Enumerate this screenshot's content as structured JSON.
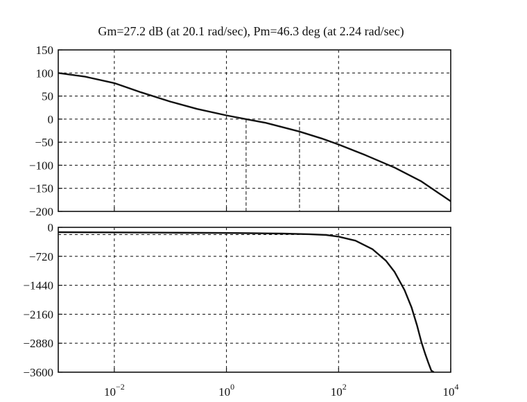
{
  "chart_data": [
    {
      "type": "line",
      "title": "Gm=27.2 dB (at 20.1 rad/sec), Pm=46.3 deg (at 2.24 rad/sec)",
      "xscale": "log",
      "xlim": [
        0.001,
        10000
      ],
      "ylim": [
        -200,
        150
      ],
      "y_ticks": [
        150,
        100,
        50,
        0,
        -50,
        -100,
        -150,
        -200
      ],
      "y_tick_labels": [
        "150",
        "100",
        "50",
        "0",
        "−50",
        "−100",
        "−150",
        "−200"
      ],
      "grid": true,
      "series": [
        {
          "x": [
            0.001,
            0.003,
            0.01,
            0.03,
            0.1,
            0.3,
            1,
            2.24,
            5,
            20.1,
            50,
            100,
            300,
            1000,
            3000,
            10000
          ],
          "values": [
            100,
            92,
            78,
            58,
            38,
            22,
            8,
            0,
            -8,
            -27,
            -42,
            -55,
            -78,
            -105,
            -135,
            -178
          ]
        }
      ],
      "markers": [
        {
          "x": 2.24,
          "from": -200,
          "to": 0
        },
        {
          "x": 20.1,
          "from": -200,
          "to": -5
        }
      ]
    },
    {
      "type": "line",
      "xscale": "log",
      "xlim": [
        0.001,
        10000
      ],
      "ylim": [
        -3600,
        0
      ],
      "y_ticks": [
        0,
        -720,
        -1440,
        -2160,
        -2880,
        -3600
      ],
      "y_tick_labels": [
        "0",
        "−720",
        "−1440",
        "−2160",
        "−2880",
        "−3600"
      ],
      "x_ticks": [
        0.01,
        1,
        100,
        10000
      ],
      "x_tick_labels": [
        {
          "base": "10",
          "exp": "−2"
        },
        {
          "base": "10",
          "exp": "0"
        },
        {
          "base": "10",
          "exp": "2"
        },
        {
          "base": "10",
          "exp": "4"
        }
      ],
      "grid": true,
      "series": [
        {
          "x": [
            0.001,
            0.01,
            0.1,
            1,
            3,
            10,
            30,
            60,
            100,
            200,
            400,
            700,
            1000,
            1500,
            2000,
            2500,
            3000,
            3500,
            4000,
            4500,
            5000
          ],
          "values": [
            -120,
            -125,
            -132,
            -140,
            -146,
            -155,
            -170,
            -190,
            -230,
            -330,
            -540,
            -830,
            -1110,
            -1560,
            -1990,
            -2430,
            -2850,
            -3140,
            -3370,
            -3560,
            -3600
          ]
        }
      ],
      "reference_lines": [
        -180
      ]
    }
  ]
}
